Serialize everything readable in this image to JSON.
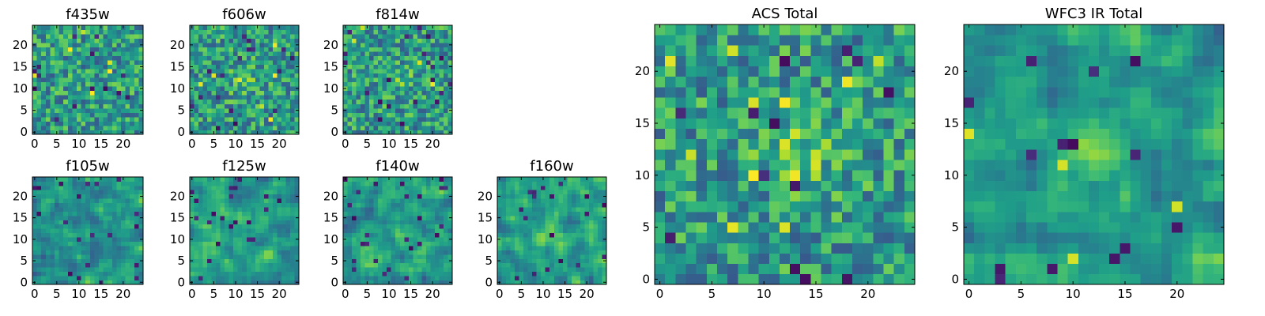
{
  "chart_data": [
    {
      "type": "heatmap",
      "title": "f435w",
      "x_ticks": [
        "0",
        "5",
        "10",
        "15",
        "20"
      ],
      "y_ticks": [
        "0",
        "5",
        "10",
        "15",
        "20"
      ],
      "xlim": [
        0,
        25
      ],
      "ylim": [
        0,
        25
      ],
      "grid": false,
      "colormap": "viridis",
      "value_range": [
        0,
        1
      ],
      "texture": "fine noise, 1 px per cell"
    },
    {
      "type": "heatmap",
      "title": "f606w",
      "x_ticks": [
        "0",
        "5",
        "10",
        "15",
        "20"
      ],
      "y_ticks": [
        "0",
        "5",
        "10",
        "15",
        "20"
      ],
      "xlim": [
        0,
        25
      ],
      "ylim": [
        0,
        25
      ],
      "grid": false,
      "colormap": "viridis",
      "value_range": [
        0,
        1
      ],
      "texture": "fine noise with a bright source near the centre"
    },
    {
      "type": "heatmap",
      "title": "f814w",
      "x_ticks": [
        "0",
        "5",
        "10",
        "15",
        "20"
      ],
      "y_ticks": [
        "0",
        "5",
        "10",
        "15",
        "20"
      ],
      "xlim": [
        0,
        25
      ],
      "ylim": [
        0,
        25
      ],
      "grid": false,
      "colormap": "viridis",
      "value_range": [
        0,
        1
      ],
      "texture": "fine noise with a faint central source"
    },
    {
      "type": "heatmap",
      "title": "f105w",
      "x_ticks": [
        "0",
        "5",
        "10",
        "15",
        "20"
      ],
      "y_ticks": [
        "0",
        "5",
        "10",
        "15",
        "20"
      ],
      "xlim": [
        0,
        25
      ],
      "ylim": [
        0,
        25
      ],
      "grid": false,
      "colormap": "viridis",
      "value_range": [
        0,
        1
      ],
      "texture": "correlated noise"
    },
    {
      "type": "heatmap",
      "title": "f125w",
      "x_ticks": [
        "0",
        "5",
        "10",
        "15",
        "20"
      ],
      "y_ticks": [
        "0",
        "5",
        "10",
        "15",
        "20"
      ],
      "xlim": [
        0,
        25
      ],
      "ylim": [
        0,
        25
      ],
      "grid": false,
      "colormap": "viridis",
      "value_range": [
        0,
        1
      ],
      "texture": "correlated noise"
    },
    {
      "type": "heatmap",
      "title": "f140w",
      "x_ticks": [
        "0",
        "5",
        "10",
        "15",
        "20"
      ],
      "y_ticks": [
        "0",
        "5",
        "10",
        "15",
        "20"
      ],
      "xlim": [
        0,
        25
      ],
      "ylim": [
        0,
        25
      ],
      "grid": false,
      "colormap": "viridis",
      "value_range": [
        0,
        1
      ],
      "texture": "correlated noise"
    },
    {
      "type": "heatmap",
      "title": "f160w",
      "x_ticks": [
        "0",
        "5",
        "10",
        "15",
        "20"
      ],
      "y_ticks": [
        "0",
        "5",
        "10",
        "15",
        "20"
      ],
      "xlim": [
        0,
        25
      ],
      "ylim": [
        0,
        25
      ],
      "grid": false,
      "colormap": "viridis",
      "value_range": [
        0,
        1
      ],
      "texture": "correlated noise with a central source"
    },
    {
      "type": "heatmap",
      "title": "ACS Total",
      "x_ticks": [
        "0",
        "5",
        "10",
        "15",
        "20"
      ],
      "y_ticks": [
        "0",
        "5",
        "10",
        "15",
        "20"
      ],
      "xlim": [
        0,
        25
      ],
      "ylim": [
        0,
        25
      ],
      "grid": false,
      "colormap": "viridis",
      "value_range": [
        0,
        1
      ],
      "texture": "25x25 pixel grid, bright source near (13, 12)"
    },
    {
      "type": "heatmap",
      "title": "WFC3 IR Total",
      "x_ticks": [
        "0",
        "5",
        "10",
        "15",
        "20"
      ],
      "y_ticks": [
        "0",
        "5",
        "10",
        "15",
        "20"
      ],
      "xlim": [
        0,
        25
      ],
      "ylim": [
        0,
        25
      ],
      "grid": false,
      "colormap": "viridis",
      "value_range": [
        0,
        1
      ],
      "texture": "25x25 pixel grid, bright source near (11, 12)"
    }
  ]
}
